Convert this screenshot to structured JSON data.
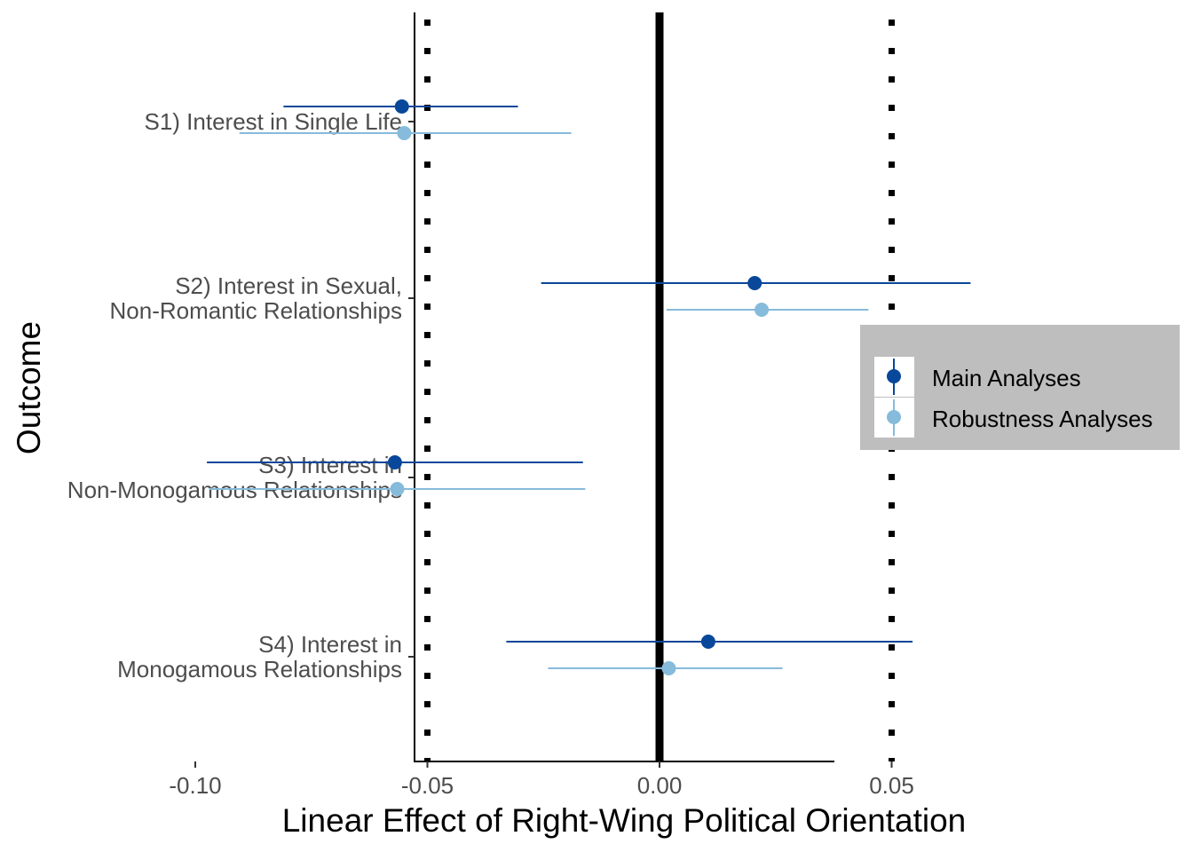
{
  "chart_data": {
    "type": "scatter",
    "subtype": "coefficient-plot-with-error-bars",
    "xlabel": "Linear Effect of Right-Wing Political Orientation",
    "ylabel": "Outcome",
    "xlim": [
      -0.103,
      0.075
    ],
    "x_ticks": [
      -0.1,
      -0.05,
      0.0,
      0.05
    ],
    "x_tick_labels": [
      "-0.10",
      "-0.05",
      "0.00",
      "0.05"
    ],
    "categories": [
      [
        "S1) Interest in Single Life"
      ],
      [
        "S2) Interest in Sexual,",
        "Non-Romantic Relationships"
      ],
      [
        "S3) Interest in",
        "Non-Monogamous Relationships"
      ],
      [
        "S4) Interest in",
        "Monogamous Relationships"
      ]
    ],
    "reference_lines": [
      {
        "x": 0.0,
        "style": "solid"
      },
      {
        "x": -0.05,
        "style": "dotted"
      },
      {
        "x": 0.05,
        "style": "dotted"
      }
    ],
    "series": [
      {
        "name": "Main Analyses",
        "color": "#08479a",
        "estimates": [
          -0.0555,
          0.0205,
          -0.057,
          0.0105
        ],
        "lower": [
          -0.081,
          -0.0255,
          -0.0975,
          -0.033
        ],
        "upper": [
          -0.0305,
          0.067,
          -0.0165,
          0.0545
        ]
      },
      {
        "name": "Robustness Analyses",
        "color": "#86bbdb",
        "estimates": [
          -0.055,
          0.022,
          -0.0565,
          0.002
        ],
        "lower": [
          -0.0905,
          0.0015,
          -0.097,
          -0.024
        ],
        "upper": [
          -0.019,
          0.045,
          -0.016,
          0.0265
        ]
      }
    ],
    "legend_position": "right",
    "legend_background": "#bebebe",
    "grid": false
  }
}
